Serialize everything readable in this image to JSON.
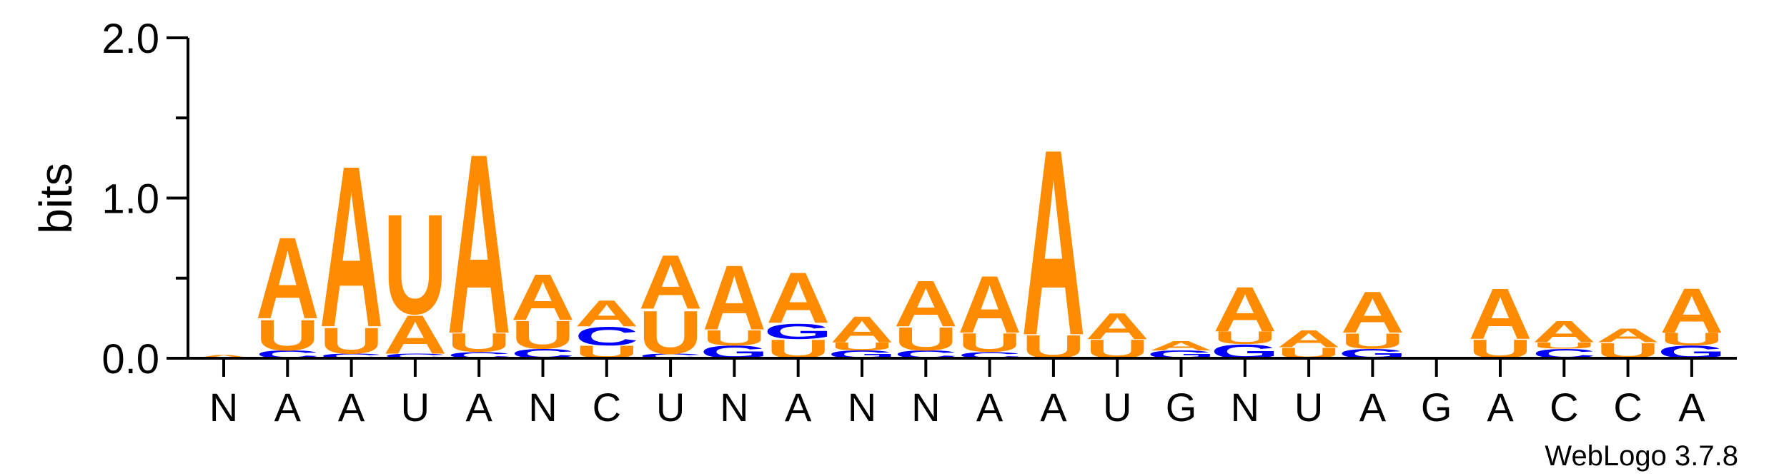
{
  "chart_data": {
    "type": "sequence-logo",
    "ylabel": "bits",
    "ylim": [
      0,
      2.0
    ],
    "y_ticks": [
      "0.0",
      "1.0",
      "2.0"
    ],
    "x_tick_labels": [
      "N",
      "A",
      "A",
      "U",
      "A",
      "N",
      "C",
      "U",
      "N",
      "A",
      "N",
      "N",
      "A",
      "A",
      "U",
      "G",
      "N",
      "U",
      "A",
      "G",
      "A",
      "C",
      "C",
      "A"
    ],
    "colors": {
      "A": "#ff8c00",
      "U": "#ff8c00",
      "C": "#0000ff",
      "G": "#0000ff"
    },
    "columns": [
      {
        "position": 1,
        "stack": [
          [
            "A",
            0.02
          ]
        ]
      },
      {
        "position": 2,
        "stack": [
          [
            "C",
            0.05
          ],
          [
            "U",
            0.2
          ],
          [
            "A",
            0.53
          ]
        ]
      },
      {
        "position": 3,
        "stack": [
          [
            "C",
            0.03
          ],
          [
            "U",
            0.17
          ],
          [
            "A",
            1.05
          ]
        ]
      },
      {
        "position": 4,
        "stack": [
          [
            "C",
            0.03
          ],
          [
            "A",
            0.25
          ],
          [
            "U",
            0.65
          ]
        ]
      },
      {
        "position": 5,
        "stack": [
          [
            "C",
            0.04
          ],
          [
            "U",
            0.12
          ],
          [
            "A",
            1.17
          ]
        ]
      },
      {
        "position": 6,
        "stack": [
          [
            "C",
            0.06
          ],
          [
            "U",
            0.18
          ],
          [
            "A",
            0.3
          ]
        ]
      },
      {
        "position": 7,
        "stack": [
          [
            "U",
            0.08
          ],
          [
            "C",
            0.12
          ],
          [
            "A",
            0.17
          ]
        ]
      },
      {
        "position": 8,
        "stack": [
          [
            "C",
            0.03
          ],
          [
            "U",
            0.28
          ],
          [
            "A",
            0.35
          ]
        ]
      },
      {
        "position": 9,
        "stack": [
          [
            "G",
            0.08
          ],
          [
            "U",
            0.1
          ],
          [
            "A",
            0.42
          ]
        ]
      },
      {
        "position": 10,
        "stack": [
          [
            "U",
            0.12
          ],
          [
            "G",
            0.1
          ],
          [
            "A",
            0.33
          ]
        ]
      },
      {
        "position": 11,
        "stack": [
          [
            "G",
            0.05
          ],
          [
            "U",
            0.05
          ],
          [
            "A",
            0.17
          ]
        ]
      },
      {
        "position": 12,
        "stack": [
          [
            "C",
            0.05
          ],
          [
            "U",
            0.15
          ],
          [
            "A",
            0.3
          ]
        ]
      },
      {
        "position": 13,
        "stack": [
          [
            "C",
            0.04
          ],
          [
            "U",
            0.12
          ],
          [
            "A",
            0.37
          ]
        ]
      },
      {
        "position": 14,
        "stack": [
          [
            "U",
            0.15
          ],
          [
            "A",
            1.21
          ]
        ]
      },
      {
        "position": 15,
        "stack": [
          [
            "U",
            0.12
          ],
          [
            "A",
            0.17
          ]
        ]
      },
      {
        "position": 16,
        "stack": [
          [
            "G",
            0.05
          ],
          [
            "A",
            0.06
          ]
        ]
      },
      {
        "position": 17,
        "stack": [
          [
            "G",
            0.09
          ],
          [
            "U",
            0.08
          ],
          [
            "A",
            0.29
          ]
        ]
      },
      {
        "position": 18,
        "stack": [
          [
            "U",
            0.07
          ],
          [
            "A",
            0.11
          ]
        ]
      },
      {
        "position": 19,
        "stack": [
          [
            "G",
            0.06
          ],
          [
            "U",
            0.1
          ],
          [
            "A",
            0.27
          ]
        ]
      },
      {
        "position": 20,
        "stack": []
      },
      {
        "position": 21,
        "stack": [
          [
            "U",
            0.12
          ],
          [
            "A",
            0.33
          ]
        ]
      },
      {
        "position": 22,
        "stack": [
          [
            "C",
            0.06
          ],
          [
            "U",
            0.04
          ],
          [
            "A",
            0.14
          ]
        ]
      },
      {
        "position": 23,
        "stack": [
          [
            "U",
            0.1
          ],
          [
            "A",
            0.09
          ]
        ]
      },
      {
        "position": 24,
        "stack": [
          [
            "G",
            0.08
          ],
          [
            "U",
            0.08
          ],
          [
            "A",
            0.29
          ]
        ]
      }
    ]
  },
  "credit": "WebLogo 3.7.8"
}
